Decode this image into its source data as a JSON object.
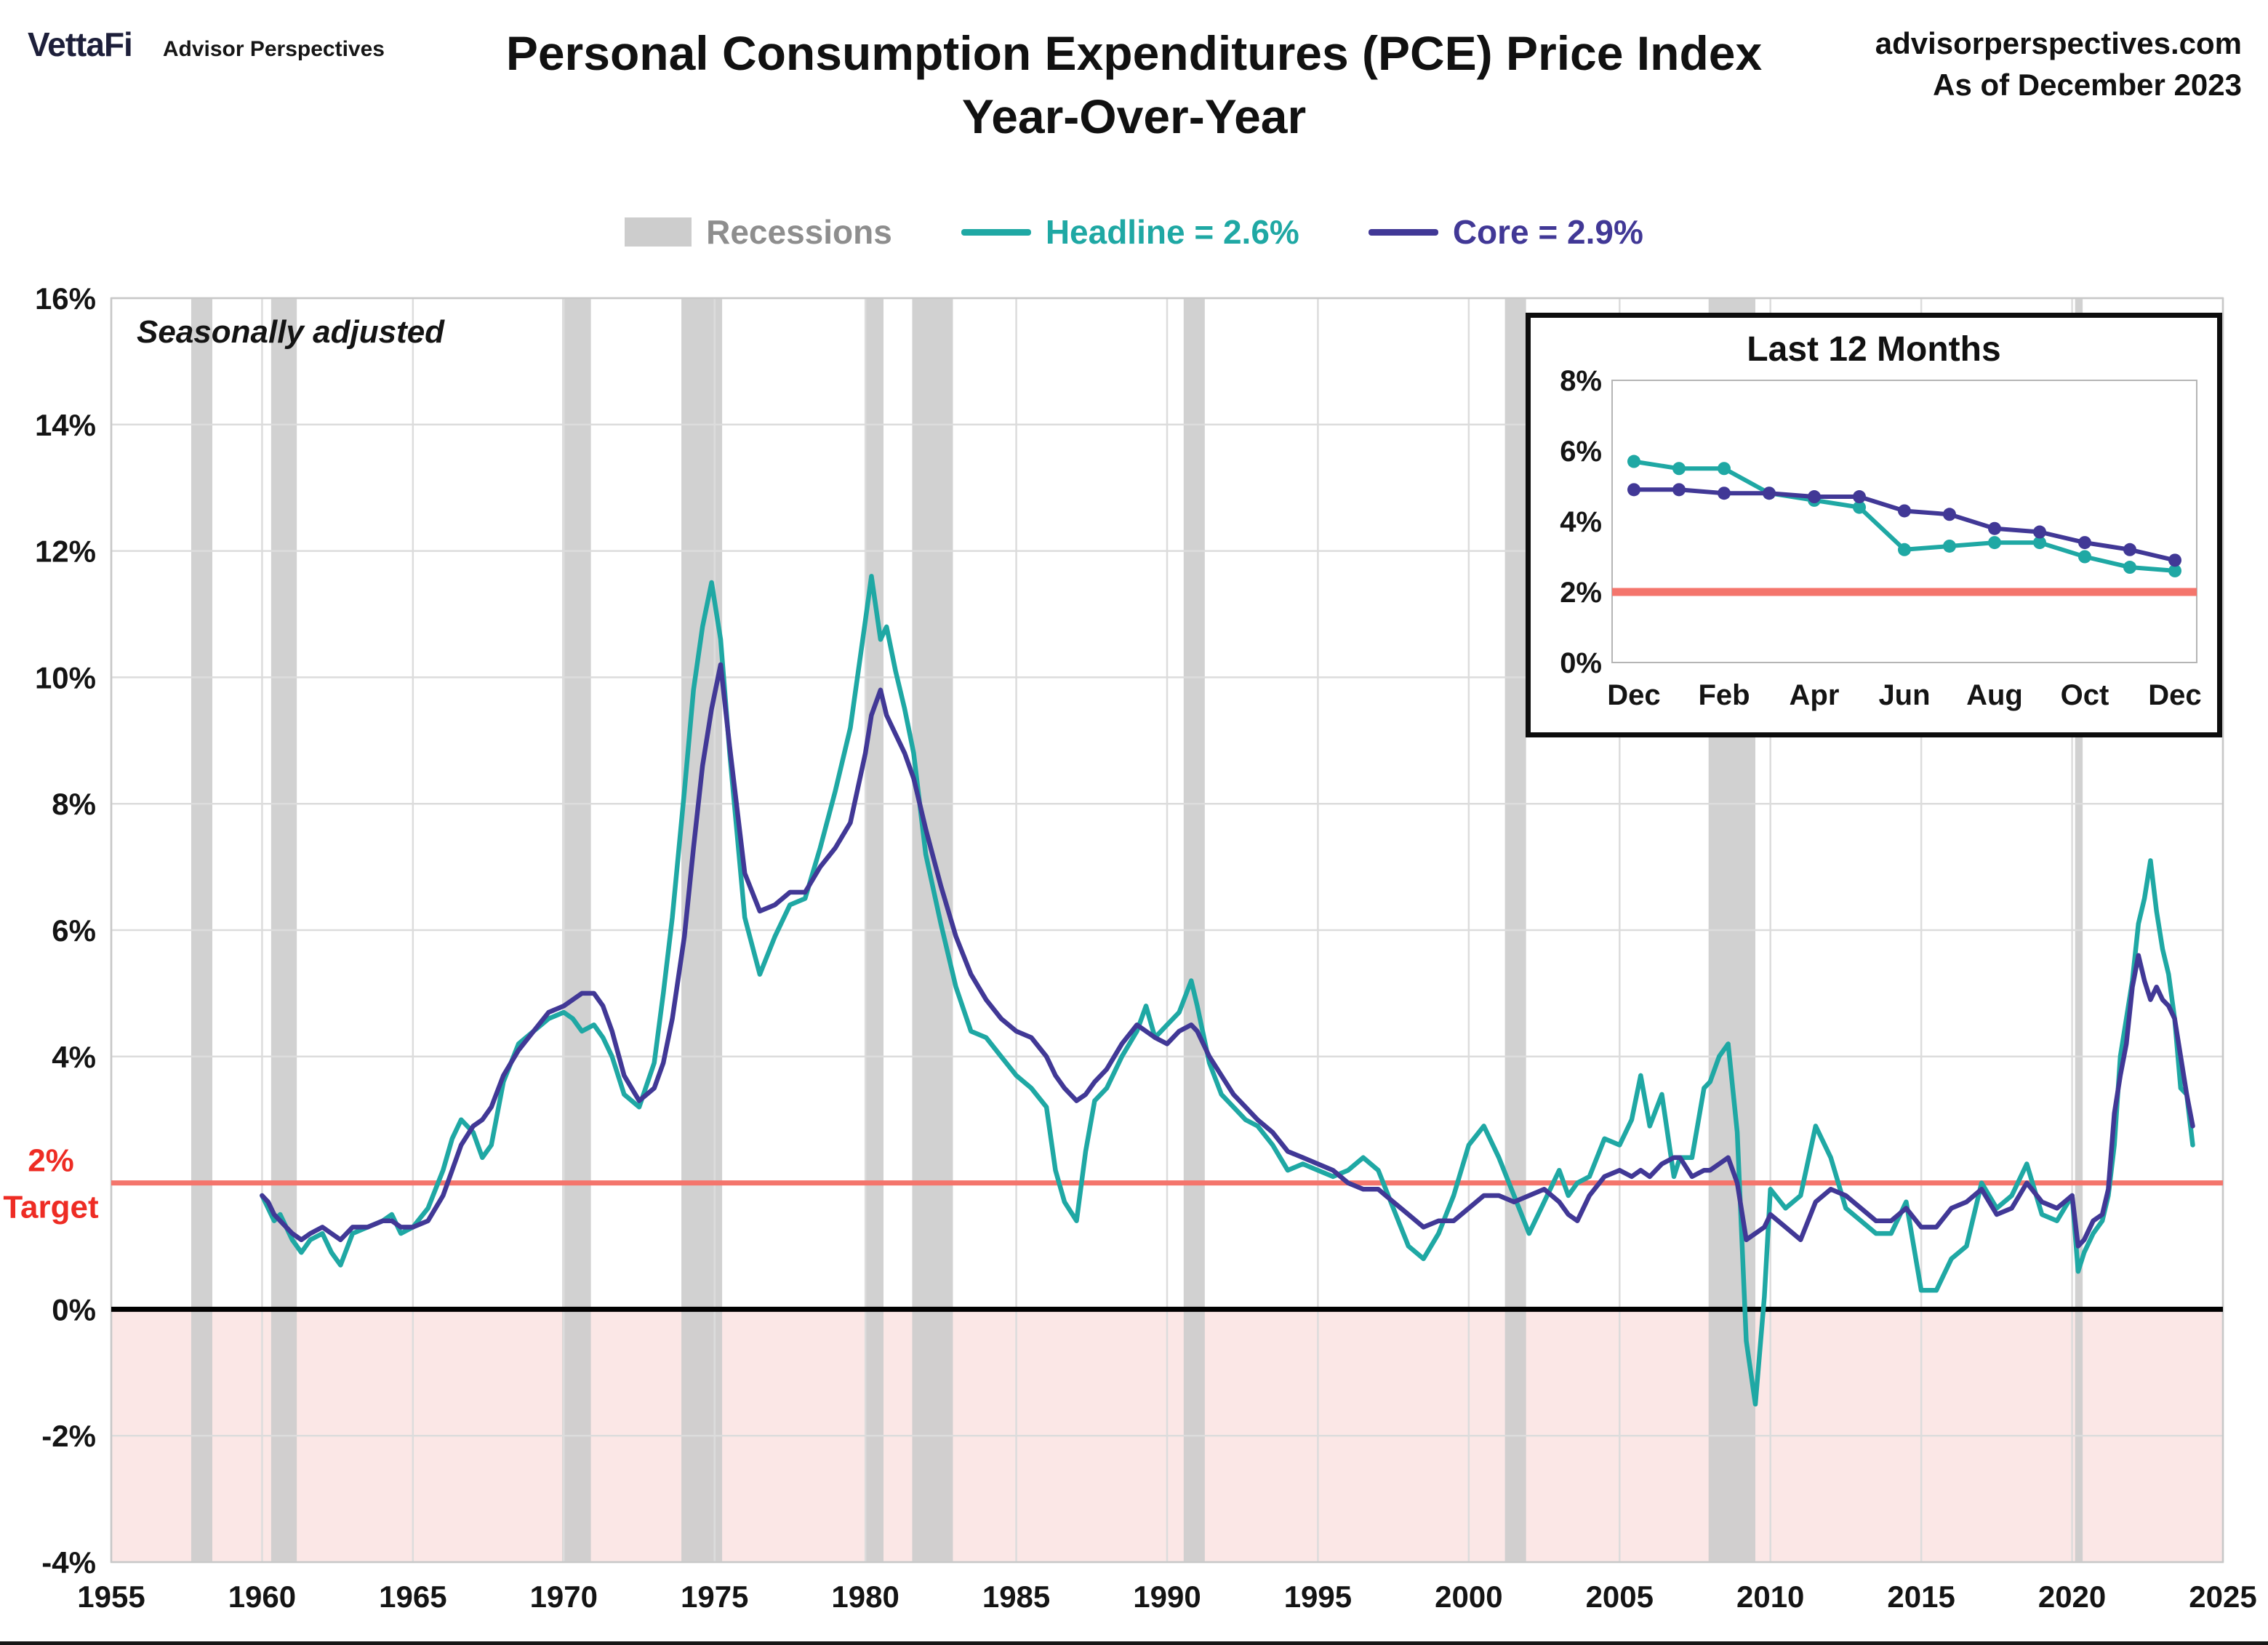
{
  "brand": {
    "name": "VettaFi",
    "tagline": "Advisor Perspectives"
  },
  "header": {
    "title_line1": "Personal Consumption Expenditures (PCE) Price Index",
    "title_line2": "Year-Over-Year",
    "website": "advisorperspectives.com",
    "as_of": "As of December 2023"
  },
  "legend": {
    "recessions_label": "Recessions",
    "headline_label": "Headline = 2.6%",
    "core_label": "Core = 2.9%"
  },
  "plot": {
    "annotation": "Seasonally adjusted"
  },
  "colors": {
    "headline": "#1fa8a4",
    "core": "#413896",
    "recession": "#cdcdcd",
    "recession_text": "#8e8e8e",
    "grid": "#dcdcdc",
    "plot_border": "#c8c8c8",
    "target_line": "#f4756c",
    "target_text": "#ee2c24",
    "below_zero": "#fbe7e6",
    "zero_line": "#000000"
  },
  "chart_data": [
    {
      "id": "main",
      "type": "line",
      "title": "Personal Consumption Expenditures (PCE) Price Index Year-Over-Year",
      "annotation": "Seasonally adjusted",
      "xlim": [
        1955,
        2025
      ],
      "ylim": [
        -4,
        16
      ],
      "x_ticks": [
        1955,
        1960,
        1965,
        1970,
        1975,
        1980,
        1985,
        1990,
        1995,
        2000,
        2005,
        2010,
        2015,
        2020,
        2025
      ],
      "y_ticks": [
        -4,
        -2,
        0,
        2,
        4,
        6,
        8,
        10,
        12,
        14,
        16
      ],
      "y_tick_suffix": "%",
      "grid": true,
      "legend_position": "top",
      "target": {
        "value": 2,
        "tick_label": "2%",
        "label": "Target"
      },
      "zero_line": 0,
      "recessions": [
        [
          1957.65,
          1958.35
        ],
        [
          1960.3,
          1961.15
        ],
        [
          1969.95,
          1970.9
        ],
        [
          1973.9,
          1975.25
        ],
        [
          1980.0,
          1980.6
        ],
        [
          1981.55,
          1982.9
        ],
        [
          1990.55,
          1991.25
        ],
        [
          2001.2,
          2001.9
        ],
        [
          2007.95,
          2009.5
        ],
        [
          2020.1,
          2020.35
        ]
      ],
      "x": [
        1960.0,
        1960.2,
        1960.4,
        1960.6,
        1960.8,
        1961.0,
        1961.3,
        1961.6,
        1962.0,
        1962.3,
        1962.6,
        1963.0,
        1963.5,
        1964.0,
        1964.3,
        1964.6,
        1965.0,
        1965.5,
        1966.0,
        1966.3,
        1966.6,
        1967.0,
        1967.3,
        1967.6,
        1968.0,
        1968.5,
        1969.0,
        1969.5,
        1970.0,
        1970.3,
        1970.6,
        1971.0,
        1971.3,
        1971.6,
        1972.0,
        1972.5,
        1973.0,
        1973.3,
        1973.6,
        1974.0,
        1974.3,
        1974.6,
        1974.9,
        1975.2,
        1975.5,
        1976.0,
        1976.5,
        1977.0,
        1977.5,
        1978.0,
        1978.5,
        1979.0,
        1979.5,
        1980.0,
        1980.2,
        1980.5,
        1980.7,
        1981.0,
        1981.3,
        1981.6,
        1982.0,
        1982.5,
        1983.0,
        1983.5,
        1984.0,
        1984.5,
        1985.0,
        1985.5,
        1986.0,
        1986.3,
        1986.6,
        1987.0,
        1987.3,
        1987.6,
        1988.0,
        1988.5,
        1989.0,
        1989.3,
        1989.6,
        1990.0,
        1990.4,
        1990.8,
        1991.0,
        1991.4,
        1991.8,
        1992.2,
        1992.6,
        1993.0,
        1993.5,
        1994.0,
        1994.5,
        1995.0,
        1995.5,
        1996.0,
        1996.5,
        1997.0,
        1997.5,
        1998.0,
        1998.5,
        1999.0,
        1999.5,
        2000.0,
        2000.5,
        2001.0,
        2001.5,
        2002.0,
        2002.5,
        2003.0,
        2003.3,
        2003.6,
        2004.0,
        2004.5,
        2005.0,
        2005.4,
        2005.7,
        2006.0,
        2006.4,
        2006.8,
        2007.0,
        2007.4,
        2007.8,
        2008.0,
        2008.3,
        2008.6,
        2008.9,
        2009.2,
        2009.5,
        2009.8,
        2010.0,
        2010.5,
        2011.0,
        2011.5,
        2012.0,
        2012.5,
        2013.0,
        2013.5,
        2014.0,
        2014.5,
        2015.0,
        2015.5,
        2016.0,
        2016.5,
        2017.0,
        2017.5,
        2018.0,
        2018.5,
        2019.0,
        2019.5,
        2020.0,
        2020.2,
        2020.4,
        2020.7,
        2021.0,
        2021.2,
        2021.4,
        2021.6,
        2021.8,
        2022.0,
        2022.2,
        2022.4,
        2022.6,
        2022.8,
        2023.0,
        2023.2,
        2023.4,
        2023.6,
        2023.8,
        2024.0
      ],
      "series": [
        {
          "name": "Headline",
          "legend": "Headline = 2.6%",
          "latest": 2.6,
          "color": "#1fa8a4",
          "y": [
            1.8,
            1.6,
            1.4,
            1.5,
            1.3,
            1.1,
            0.9,
            1.1,
            1.2,
            0.9,
            0.7,
            1.2,
            1.3,
            1.4,
            1.5,
            1.2,
            1.3,
            1.6,
            2.2,
            2.7,
            3.0,
            2.8,
            2.4,
            2.6,
            3.6,
            4.2,
            4.4,
            4.6,
            4.7,
            4.6,
            4.4,
            4.5,
            4.3,
            4.0,
            3.4,
            3.2,
            3.9,
            5.0,
            6.2,
            8.2,
            9.8,
            10.8,
            11.5,
            10.6,
            8.8,
            6.2,
            5.3,
            5.9,
            6.4,
            6.5,
            7.3,
            8.2,
            9.2,
            10.9,
            11.6,
            10.6,
            10.8,
            10.1,
            9.5,
            8.8,
            7.2,
            6.1,
            5.1,
            4.4,
            4.3,
            4.0,
            3.7,
            3.5,
            3.2,
            2.2,
            1.7,
            1.4,
            2.5,
            3.3,
            3.5,
            4.0,
            4.4,
            4.8,
            4.3,
            4.5,
            4.7,
            5.2,
            4.8,
            3.9,
            3.4,
            3.2,
            3.0,
            2.9,
            2.6,
            2.2,
            2.3,
            2.2,
            2.1,
            2.2,
            2.4,
            2.2,
            1.6,
            1.0,
            0.8,
            1.2,
            1.8,
            2.6,
            2.9,
            2.4,
            1.8,
            1.2,
            1.7,
            2.2,
            1.8,
            2.0,
            2.1,
            2.7,
            2.6,
            3.0,
            3.7,
            2.9,
            3.4,
            2.1,
            2.4,
            2.4,
            3.5,
            3.6,
            4.0,
            4.2,
            2.8,
            -0.5,
            -1.5,
            0.2,
            1.9,
            1.6,
            1.8,
            2.9,
            2.4,
            1.6,
            1.4,
            1.2,
            1.2,
            1.7,
            0.3,
            0.3,
            0.8,
            1.0,
            2.0,
            1.6,
            1.8,
            2.3,
            1.5,
            1.4,
            1.8,
            0.6,
            0.9,
            1.2,
            1.4,
            1.8,
            2.6,
            4.0,
            4.6,
            5.2,
            6.1,
            6.5,
            7.1,
            6.3,
            5.7,
            5.3,
            4.6,
            3.5,
            3.4,
            2.6
          ]
        },
        {
          "name": "Core",
          "legend": "Core = 2.9%",
          "latest": 2.9,
          "color": "#413896",
          "y": [
            1.8,
            1.7,
            1.5,
            1.4,
            1.3,
            1.2,
            1.1,
            1.2,
            1.3,
            1.2,
            1.1,
            1.3,
            1.3,
            1.4,
            1.4,
            1.3,
            1.3,
            1.4,
            1.8,
            2.2,
            2.6,
            2.9,
            3.0,
            3.2,
            3.7,
            4.1,
            4.4,
            4.7,
            4.8,
            4.9,
            5.0,
            5.0,
            4.8,
            4.4,
            3.7,
            3.3,
            3.5,
            3.9,
            4.6,
            5.9,
            7.3,
            8.6,
            9.5,
            10.2,
            8.9,
            6.9,
            6.3,
            6.4,
            6.6,
            6.6,
            7.0,
            7.3,
            7.7,
            8.8,
            9.4,
            9.8,
            9.4,
            9.1,
            8.8,
            8.4,
            7.6,
            6.7,
            5.9,
            5.3,
            4.9,
            4.6,
            4.4,
            4.3,
            4.0,
            3.7,
            3.5,
            3.3,
            3.4,
            3.6,
            3.8,
            4.2,
            4.5,
            4.4,
            4.3,
            4.2,
            4.4,
            4.5,
            4.4,
            4.0,
            3.7,
            3.4,
            3.2,
            3.0,
            2.8,
            2.5,
            2.4,
            2.3,
            2.2,
            2.0,
            1.9,
            1.9,
            1.7,
            1.5,
            1.3,
            1.4,
            1.4,
            1.6,
            1.8,
            1.8,
            1.7,
            1.8,
            1.9,
            1.7,
            1.5,
            1.4,
            1.8,
            2.1,
            2.2,
            2.1,
            2.2,
            2.1,
            2.3,
            2.4,
            2.4,
            2.1,
            2.2,
            2.2,
            2.3,
            2.4,
            2.0,
            1.1,
            1.2,
            1.3,
            1.5,
            1.3,
            1.1,
            1.7,
            1.9,
            1.8,
            1.6,
            1.4,
            1.4,
            1.6,
            1.3,
            1.3,
            1.6,
            1.7,
            1.9,
            1.5,
            1.6,
            2.0,
            1.7,
            1.6,
            1.8,
            1.0,
            1.1,
            1.4,
            1.5,
            1.9,
            3.1,
            3.7,
            4.2,
            5.1,
            5.6,
            5.2,
            4.9,
            5.1,
            4.9,
            4.8,
            4.6,
            4.0,
            3.4,
            2.9
          ]
        }
      ]
    },
    {
      "id": "inset",
      "type": "line",
      "title": "Last 12 Months",
      "ylim": [
        0,
        8
      ],
      "y_ticks": [
        0,
        2,
        4,
        6,
        8
      ],
      "y_tick_suffix": "%",
      "target_value": 2,
      "categories": [
        "Dec",
        "Jan",
        "Feb",
        "Mar",
        "Apr",
        "May",
        "Jun",
        "Jul",
        "Aug",
        "Sep",
        "Oct",
        "Nov",
        "Dec"
      ],
      "x_tick_labels": [
        "Dec",
        "Feb",
        "Apr",
        "Jun",
        "Aug",
        "Oct",
        "Dec"
      ],
      "series": [
        {
          "name": "Headline",
          "color": "#1fa8a4",
          "values": [
            5.7,
            5.5,
            5.5,
            4.8,
            4.6,
            4.4,
            3.2,
            3.3,
            3.4,
            3.4,
            3.0,
            2.7,
            2.6
          ]
        },
        {
          "name": "Core",
          "color": "#413896",
          "values": [
            4.9,
            4.9,
            4.8,
            4.8,
            4.7,
            4.7,
            4.3,
            4.2,
            3.8,
            3.7,
            3.4,
            3.2,
            2.9
          ]
        }
      ]
    }
  ]
}
